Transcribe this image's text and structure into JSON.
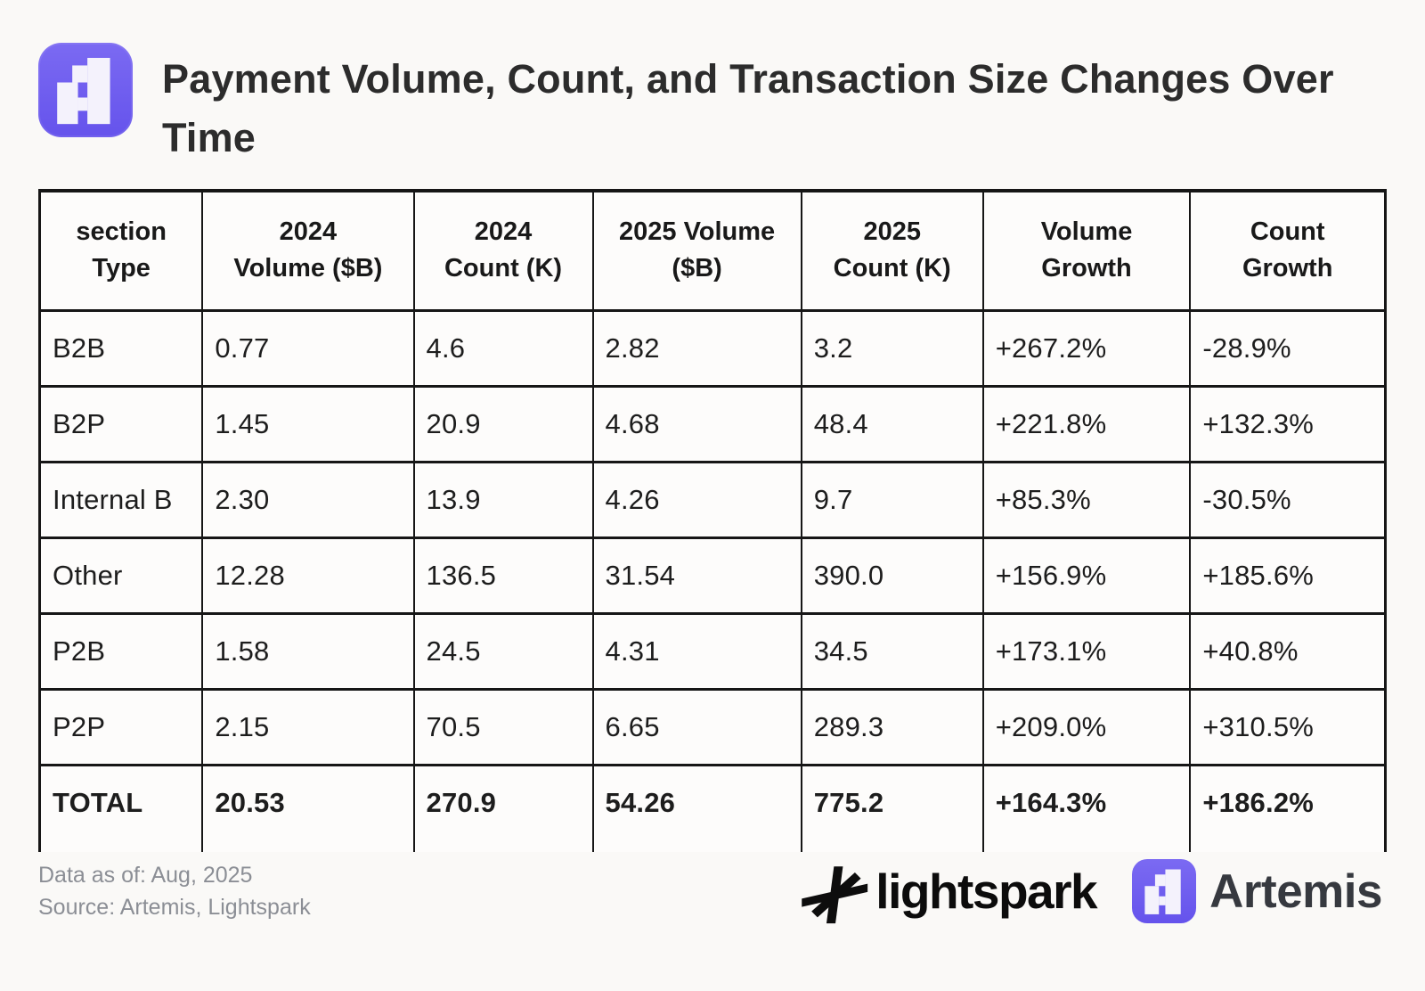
{
  "header": {
    "logo": "artemis-app-icon",
    "title_lines": [
      "Payment Volume, Count, and Transaction Size Changes Over",
      "Time"
    ]
  },
  "chart_data": {
    "type": "table",
    "title": "Payment Volume, Count, and Transaction Size Changes Over Time",
    "columns": [
      [
        "section",
        "Type"
      ],
      [
        "2024",
        "Volume ($B)"
      ],
      [
        "2024",
        "Count (K)"
      ],
      [
        "2025 Volume",
        "($B)"
      ],
      [
        "2025",
        "Count (K)"
      ],
      [
        "Volume",
        "Growth"
      ],
      [
        "Count",
        "Growth"
      ]
    ],
    "rows": [
      {
        "label": "B2B",
        "values": [
          "0.77",
          "4.6",
          "2.82",
          "3.2",
          "+267.2%",
          "-28.9%"
        ]
      },
      {
        "label": "B2P",
        "values": [
          "1.45",
          "20.9",
          "4.68",
          "48.4",
          "+221.8%",
          "+132.3%"
        ]
      },
      {
        "label": "Internal B",
        "values": [
          "2.30",
          "13.9",
          "4.26",
          "9.7",
          "+85.3%",
          "-30.5%"
        ]
      },
      {
        "label": "Other",
        "values": [
          "12.28",
          "136.5",
          "31.54",
          "390.0",
          "+156.9%",
          "+185.6%"
        ]
      },
      {
        "label": "P2B",
        "values": [
          "1.58",
          "24.5",
          "4.31",
          "34.5",
          "+173.1%",
          "+40.8%"
        ]
      },
      {
        "label": "P2P",
        "values": [
          "2.15",
          "70.5",
          "6.65",
          "289.3",
          "+209.0%",
          "+310.5%"
        ]
      }
    ],
    "total": {
      "label": "TOTAL",
      "values": [
        "20.53",
        "270.9",
        "54.26",
        "775.2",
        "+164.3%",
        "+186.2%"
      ]
    }
  },
  "footer": {
    "data_as_of": "Data as of: Aug, 2025",
    "source": "Source: Artemis, Lightspark",
    "lightspark_label": "lightspark",
    "artemis_label": "Artemis"
  },
  "colors": {
    "accent_purple": "#6C5AEE",
    "logo_glyph_white": "#f4f2fc",
    "table_line": "#161616",
    "title_text": "#2c2c2c",
    "body_text": "#1d1d1d",
    "muted_text": "#8b8e95",
    "background": "#faf9f7"
  }
}
